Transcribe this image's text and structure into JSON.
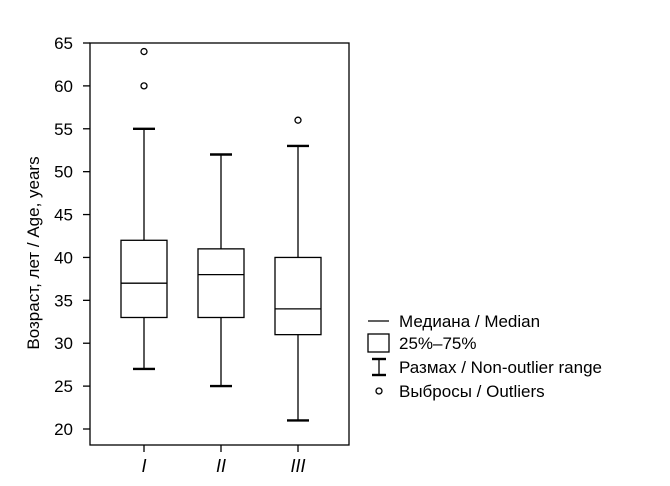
{
  "chart_data": {
    "type": "box",
    "title": "",
    "xlabel": "",
    "ylabel": "Возраст, лет / Age, years",
    "ylim": [
      20,
      65
    ],
    "yticks": [
      20,
      25,
      30,
      35,
      40,
      45,
      50,
      55,
      60,
      65
    ],
    "grid": false,
    "legend_position": "right",
    "categories": [
      "I",
      "II",
      "III"
    ],
    "boxes": [
      {
        "category": "I",
        "whisker_low": 27,
        "q1": 33,
        "median": 37,
        "q3": 42,
        "whisker_high": 55,
        "outliers": [
          60,
          64
        ]
      },
      {
        "category": "II",
        "whisker_low": 25,
        "q1": 33,
        "median": 38,
        "q3": 41,
        "whisker_high": 52,
        "outliers": []
      },
      {
        "category": "III",
        "whisker_low": 21,
        "q1": 31,
        "median": 34,
        "q3": 40,
        "whisker_high": 53,
        "outliers": [
          56
        ]
      }
    ],
    "legend": [
      {
        "key": "median",
        "label": "Медиана / Median"
      },
      {
        "key": "box",
        "label": "25%–75%"
      },
      {
        "key": "range",
        "label": "Размах / Non-outlier range"
      },
      {
        "key": "outlier",
        "label": "Выбросы / Outliers"
      }
    ]
  }
}
